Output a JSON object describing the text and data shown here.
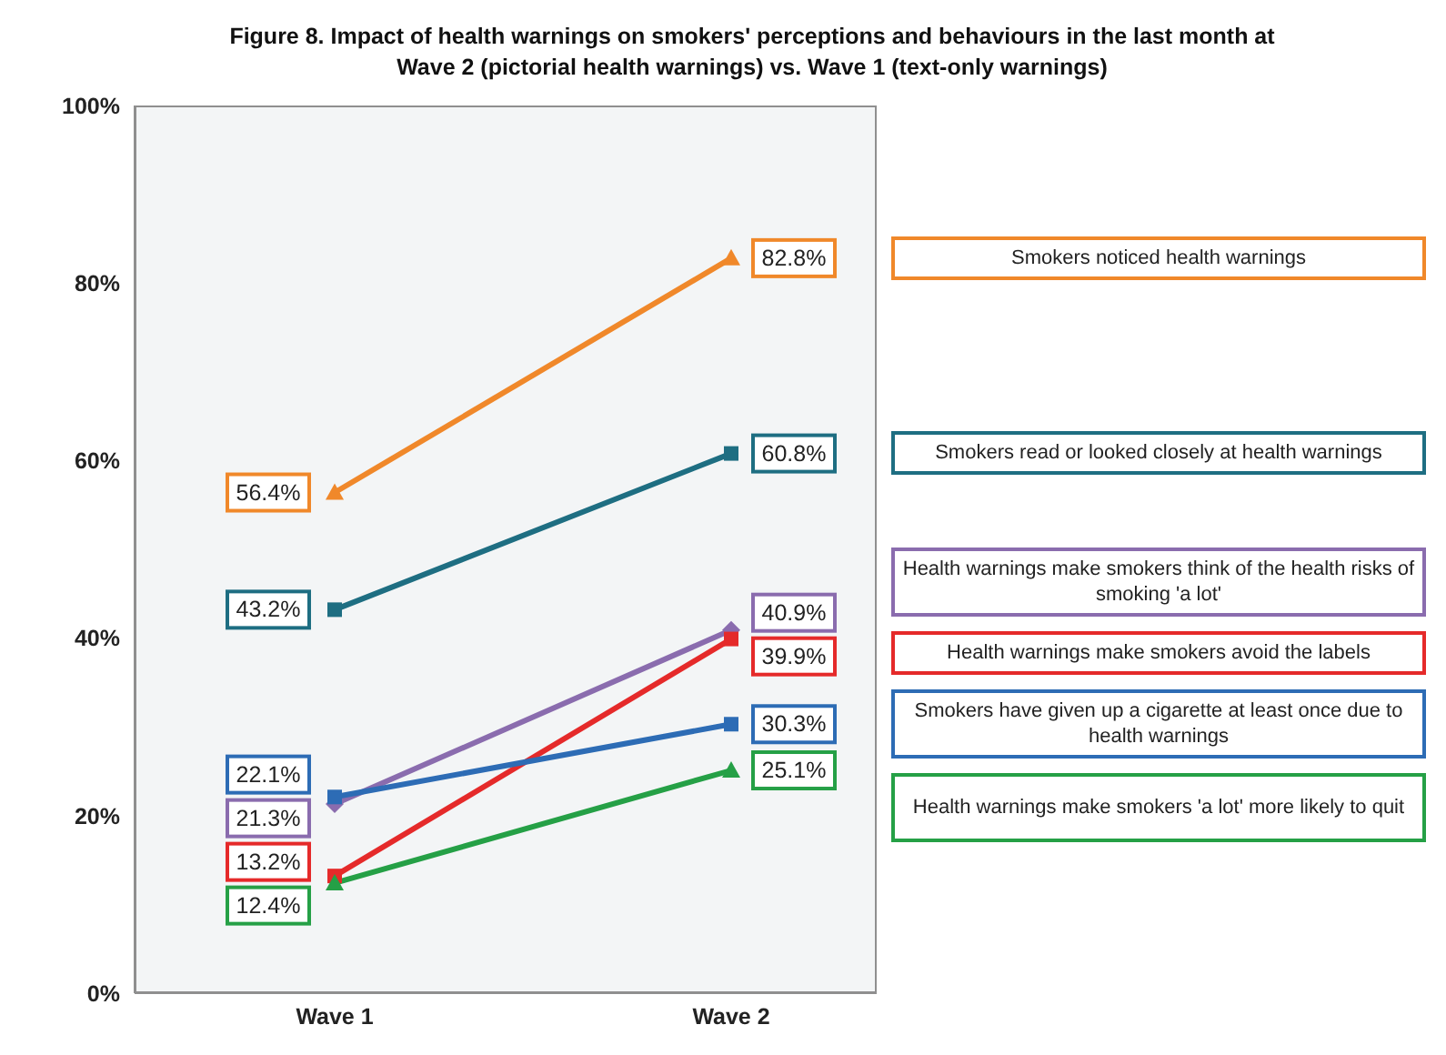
{
  "chart_data": {
    "type": "line",
    "title": "Figure 8. Impact of health warnings on smokers' perceptions and behaviours in the last month at Wave 2 (pictorial health warnings) vs. Wave 1 (text-only warnings)",
    "categories": [
      "Wave 1",
      "Wave 2"
    ],
    "ylim": [
      0,
      100
    ],
    "yticks": [
      {
        "value": 0,
        "label": "0%"
      },
      {
        "value": 20,
        "label": "20%"
      },
      {
        "value": 40,
        "label": "40%"
      },
      {
        "value": 60,
        "label": "60%"
      },
      {
        "value": 80,
        "label": "80%"
      },
      {
        "value": 100,
        "label": "100%"
      }
    ],
    "legend": "right",
    "series": [
      {
        "name": "Smokers noticed health warnings",
        "color": "#f0882a",
        "marker": "triangle",
        "values": [
          56.4,
          82.8
        ],
        "value_labels": [
          "56.4%",
          "82.8%"
        ]
      },
      {
        "name": "Smokers read or looked closely at health warnings",
        "color": "#1e6e82",
        "marker": "square",
        "values": [
          43.2,
          60.8
        ],
        "value_labels": [
          "43.2%",
          "60.8%"
        ]
      },
      {
        "name": "Health warnings make smokers think of the health risks of smoking 'a lot'",
        "color": "#8a6cae",
        "marker": "diamond",
        "values": [
          21.3,
          40.9
        ],
        "value_labels": [
          "21.3%",
          "40.9%"
        ]
      },
      {
        "name": "Health warnings make smokers avoid the labels",
        "color": "#e52a2a",
        "marker": "square",
        "values": [
          13.2,
          39.9
        ],
        "value_labels": [
          "13.2%",
          "39.9%"
        ]
      },
      {
        "name": "Smokers have given up a cigarette at least once due to health warnings",
        "color": "#2d6cb5",
        "marker": "square",
        "values": [
          22.1,
          30.3
        ],
        "value_labels": [
          "22.1%",
          "30.3%"
        ]
      },
      {
        "name": "Health warnings make smokers 'a lot' more likely to quit",
        "color": "#25a046",
        "marker": "triangle",
        "values": [
          12.4,
          25.1
        ],
        "value_labels": [
          "12.4%",
          "25.1%"
        ]
      }
    ]
  }
}
